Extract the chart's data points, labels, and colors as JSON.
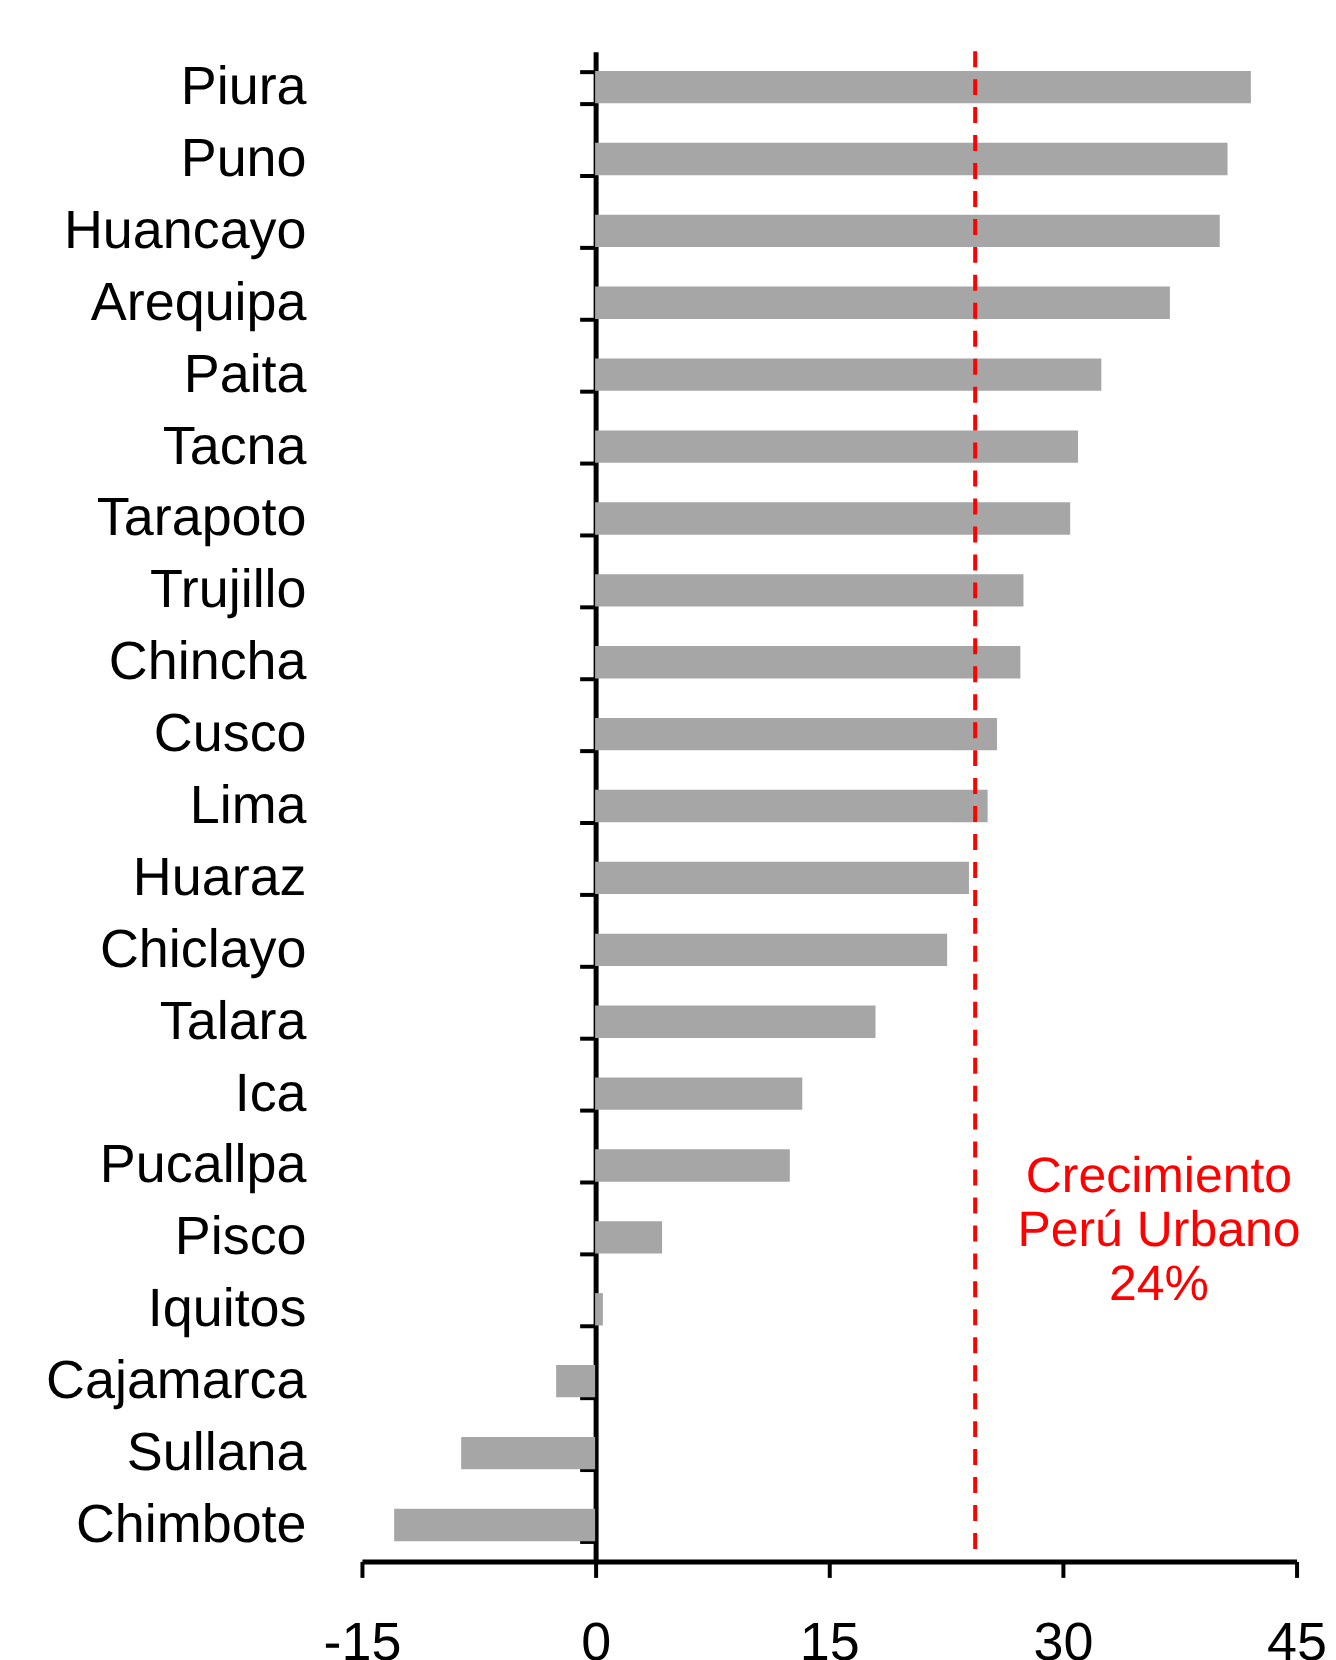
{
  "chart_data": {
    "type": "bar",
    "orientation": "horizontal",
    "categories": [
      "Piura",
      "Puno",
      "Huancayo",
      "Arequipa",
      "Paita",
      "Tacna",
      "Tarapoto",
      "Trujillo",
      "Chincha",
      "Cusco",
      "Lima",
      "Huaraz",
      "Chiclayo",
      "Talara",
      "Ica",
      "Pucallpa",
      "Pisco",
      "Iquitos",
      "Cajamarca",
      "Sullana",
      "Chimbote"
    ],
    "values": [
      42.1,
      40.6,
      40.1,
      36.9,
      32.5,
      31.0,
      30.5,
      27.5,
      27.3,
      25.8,
      25.2,
      24.0,
      22.6,
      18.0,
      13.3,
      12.5,
      4.3,
      0.5,
      -2.5,
      -8.6,
      -12.9
    ],
    "color": "#a6a6a6",
    "xlim": [
      -15,
      45
    ],
    "xticks": [
      -15,
      0,
      15,
      30,
      45
    ],
    "ref_lines": [
      {
        "axis": "x",
        "value": 24.4,
        "label": "Crecimiento\nPerú Urbano\n24%",
        "color": "#ff0000",
        "line_style": "dashed"
      }
    ]
  }
}
